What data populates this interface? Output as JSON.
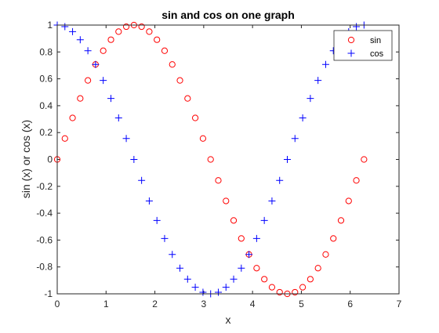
{
  "chart_data": {
    "type": "scatter",
    "title": "sin and cos on one graph",
    "xlabel": "x",
    "ylabel": "sin (x) or cos (x)",
    "xlim": [
      0,
      7
    ],
    "ylim": [
      -1,
      1
    ],
    "xticks": [
      0,
      1,
      2,
      3,
      4,
      5,
      6,
      7
    ],
    "yticks": [
      -1,
      -0.8,
      -0.6,
      -0.4,
      -0.2,
      0,
      0.2,
      0.4,
      0.6,
      0.8,
      1
    ],
    "x": [
      0,
      0.157,
      0.314,
      0.471,
      0.628,
      0.785,
      0.942,
      1.1,
      1.257,
      1.414,
      1.571,
      1.728,
      1.885,
      2.042,
      2.199,
      2.356,
      2.513,
      2.67,
      2.827,
      2.985,
      3.142,
      3.299,
      3.456,
      3.613,
      3.77,
      3.927,
      4.084,
      4.241,
      4.398,
      4.555,
      4.712,
      4.869,
      5.027,
      5.184,
      5.341,
      5.498,
      5.655,
      5.812,
      5.969,
      6.126,
      6.283
    ],
    "series": [
      {
        "name": "sin",
        "marker": "circle",
        "color": "#ff0000",
        "values": [
          0,
          0.156,
          0.309,
          0.454,
          0.588,
          0.707,
          0.809,
          0.891,
          0.951,
          0.988,
          1,
          0.988,
          0.951,
          0.891,
          0.809,
          0.707,
          0.588,
          0.454,
          0.309,
          0.156,
          0,
          -0.156,
          -0.309,
          -0.454,
          -0.588,
          -0.707,
          -0.809,
          -0.891,
          -0.951,
          -0.988,
          -1,
          -0.988,
          -0.951,
          -0.891,
          -0.809,
          -0.707,
          -0.588,
          -0.454,
          -0.309,
          -0.156,
          0
        ]
      },
      {
        "name": "cos",
        "marker": "plus",
        "color": "#0000ff",
        "values": [
          1,
          0.988,
          0.951,
          0.891,
          0.809,
          0.707,
          0.588,
          0.454,
          0.309,
          0.156,
          0,
          -0.156,
          -0.309,
          -0.454,
          -0.588,
          -0.707,
          -0.809,
          -0.891,
          -0.951,
          -0.988,
          -1,
          -0.988,
          -0.951,
          -0.891,
          -0.809,
          -0.707,
          -0.588,
          -0.454,
          -0.309,
          -0.156,
          0,
          0.156,
          0.309,
          0.454,
          0.588,
          0.707,
          0.809,
          0.891,
          0.951,
          0.988,
          1
        ]
      }
    ],
    "grid": false,
    "legend": "top-right"
  }
}
